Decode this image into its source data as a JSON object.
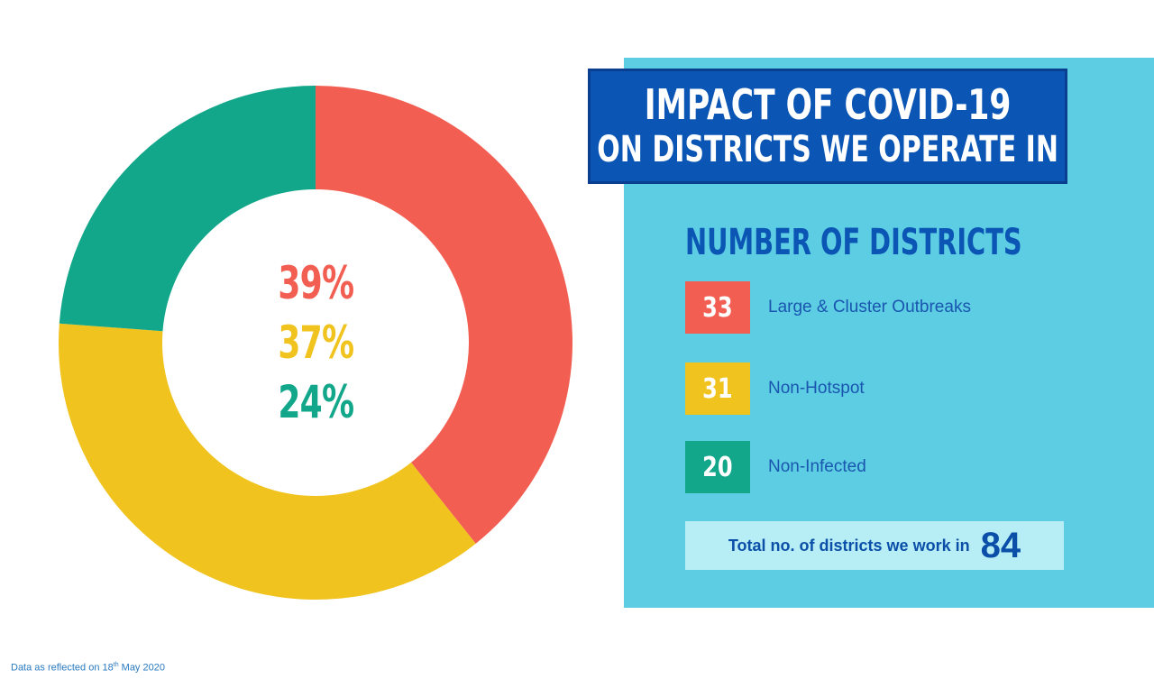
{
  "title": {
    "line1": "Impact of COVID-19",
    "line2": "on districts we operate in"
  },
  "subheading": "Number of districts",
  "chart_data": {
    "type": "pie",
    "categories": [
      "Large & Cluster Outbreaks",
      "Non-Hotspot",
      "Non-Infected"
    ],
    "values": [
      33,
      31,
      20
    ],
    "percent_labels": [
      "39%",
      "37%",
      "24%"
    ],
    "colors": [
      "#f25f52",
      "#f0c31f",
      "#12a78a"
    ]
  },
  "legend": [
    {
      "count": "33",
      "label": "Large & Cluster Outbreaks",
      "color": "#f25f52"
    },
    {
      "count": "31",
      "label": "Non-Hotspot",
      "color": "#f0c31f"
    },
    {
      "count": "20",
      "label": "Non-Infected",
      "color": "#12a78a"
    }
  ],
  "total": {
    "label": "Total no. of districts we work in",
    "value": "84"
  },
  "footnote": {
    "prefix": "Data as reflected on 18",
    "sup": "th",
    "suffix": " May 2020"
  },
  "colors": {
    "panel": "#5ccde3",
    "title_bg": "#0b55b5",
    "total_bg": "#b7eef6",
    "text_blue": "#0b55b5"
  }
}
